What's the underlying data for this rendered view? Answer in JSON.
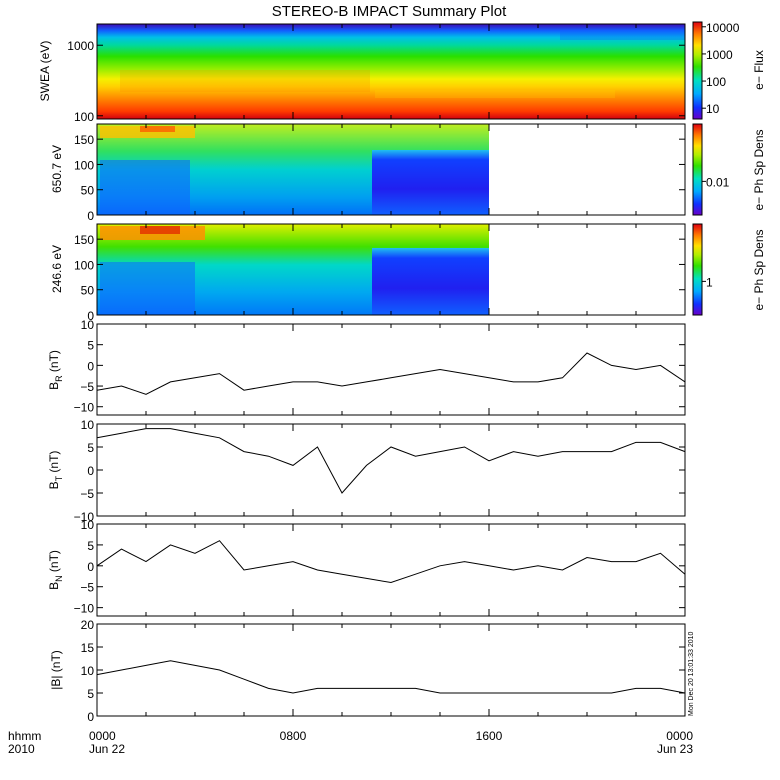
{
  "title": "STEREO-B IMPACT Summary Plot",
  "stamp": "Mon Dec 20 13:01:33 2010",
  "time_axis": {
    "left_label_1": "hhmm",
    "left_label_2": "2010",
    "ticks": [
      {
        "hours": 0,
        "label": "0000",
        "sublabel": "Jun 22"
      },
      {
        "hours": 8,
        "label": "0800",
        "sublabel": ""
      },
      {
        "hours": 16,
        "label": "1600",
        "sublabel": ""
      },
      {
        "hours": 24,
        "label": "0000",
        "sublabel": "Jun 23"
      }
    ],
    "range_hours": [
      0,
      24
    ]
  },
  "colors": {
    "trace": "#000000",
    "frame": "#000000"
  },
  "chart_data": [
    {
      "type": "heatmap",
      "ylabel": "SWEA (eV)",
      "yscale": "log",
      "ylim": [
        90,
        2000
      ],
      "yticks": [
        {
          "value": 100,
          "label": "100"
        },
        {
          "value": 1000,
          "label": "1000"
        }
      ],
      "colorbar": {
        "label": "e− Flux",
        "scale": "log",
        "range": [
          4,
          15000
        ],
        "ticks": [
          {
            "value": 10,
            "label": "10"
          },
          {
            "value": 100,
            "label": "100"
          },
          {
            "value": 1000,
            "label": "1000"
          },
          {
            "value": 10000,
            "label": "10000"
          }
        ]
      },
      "data_end_hours": 24
    },
    {
      "type": "heatmap",
      "ylabel": "650.7 eV",
      "ylim": [
        0,
        180
      ],
      "yticks": [
        {
          "value": 0,
          "label": "0"
        },
        {
          "value": 50,
          "label": "50"
        },
        {
          "value": 100,
          "label": "100"
        },
        {
          "value": 150,
          "label": "150"
        }
      ],
      "colorbar": {
        "label": "e− Ph Sp Dens",
        "scale": "log",
        "range": [
          0.0035,
          0.06
        ],
        "ticks": [
          {
            "value": 0.01,
            "label": "0.01"
          }
        ]
      },
      "data_end_hours": 16
    },
    {
      "type": "heatmap",
      "ylabel": "246.6 eV",
      "ylim": [
        0,
        180
      ],
      "yticks": [
        {
          "value": 0,
          "label": "0"
        },
        {
          "value": 50,
          "label": "50"
        },
        {
          "value": 100,
          "label": "100"
        },
        {
          "value": 150,
          "label": "150"
        }
      ],
      "colorbar": {
        "label": "e− Ph Sp Dens",
        "scale": "log",
        "range": [
          0.35,
          6
        ],
        "ticks": [
          {
            "value": 1,
            "label": "1"
          }
        ]
      },
      "data_end_hours": 16
    },
    {
      "type": "line",
      "ylabel": "B",
      "ylabel_sub": "R",
      "ylabel_unit": " (nT)",
      "ylim": [
        -12,
        10
      ],
      "yticks": [
        {
          "value": -10,
          "label": "−10"
        },
        {
          "value": -5,
          "label": "−5"
        },
        {
          "value": 0,
          "label": "0"
        },
        {
          "value": 5,
          "label": "5"
        },
        {
          "value": 10,
          "label": "10"
        }
      ],
      "x": [
        0,
        1,
        2,
        3,
        4,
        5,
        6,
        7,
        8,
        9,
        10,
        11,
        12,
        13,
        14,
        15,
        16,
        17,
        18,
        19,
        20,
        21,
        22,
        23,
        24
      ],
      "y": [
        -6,
        -5,
        -7,
        -4,
        -3,
        -2,
        -6,
        -5,
        -4,
        -4,
        -5,
        -4,
        -3,
        -2,
        -1,
        -2,
        -3,
        -4,
        -4,
        -3,
        3,
        0,
        -1,
        0,
        -4
      ]
    },
    {
      "type": "line",
      "ylabel": "B",
      "ylabel_sub": "T",
      "ylabel_unit": " (nT)",
      "ylim": [
        -10,
        10
      ],
      "yticks": [
        {
          "value": -10,
          "label": "−10"
        },
        {
          "value": -5,
          "label": "−5"
        },
        {
          "value": 0,
          "label": "0"
        },
        {
          "value": 5,
          "label": "5"
        },
        {
          "value": 10,
          "label": "10"
        }
      ],
      "x": [
        0,
        1,
        2,
        3,
        4,
        5,
        6,
        7,
        8,
        9,
        10,
        11,
        12,
        13,
        14,
        15,
        16,
        17,
        18,
        19,
        20,
        21,
        22,
        23,
        24
      ],
      "y": [
        7,
        8,
        9,
        9,
        8,
        7,
        4,
        3,
        1,
        5,
        -5,
        1,
        5,
        3,
        4,
        5,
        2,
        4,
        3,
        4,
        4,
        4,
        6,
        6,
        4
      ]
    },
    {
      "type": "line",
      "ylabel": "B",
      "ylabel_sub": "N",
      "ylabel_unit": " (nT)",
      "ylim": [
        -12,
        10
      ],
      "yticks": [
        {
          "value": -10,
          "label": "−10"
        },
        {
          "value": -5,
          "label": "−5"
        },
        {
          "value": 0,
          "label": "0"
        },
        {
          "value": 5,
          "label": "5"
        },
        {
          "value": 10,
          "label": "10"
        }
      ],
      "x": [
        0,
        1,
        2,
        3,
        4,
        5,
        6,
        7,
        8,
        9,
        10,
        11,
        12,
        13,
        14,
        15,
        16,
        17,
        18,
        19,
        20,
        21,
        22,
        23,
        24
      ],
      "y": [
        0,
        4,
        1,
        5,
        3,
        6,
        -1,
        0,
        1,
        -1,
        -2,
        -3,
        -4,
        -2,
        0,
        1,
        0,
        -1,
        0,
        -1,
        2,
        1,
        1,
        3,
        -2
      ]
    },
    {
      "type": "line",
      "ylabel": "|B| (nT)",
      "ylim": [
        0,
        20
      ],
      "yticks": [
        {
          "value": 0,
          "label": "0"
        },
        {
          "value": 5,
          "label": "5"
        },
        {
          "value": 10,
          "label": "10"
        },
        {
          "value": 15,
          "label": "15"
        },
        {
          "value": 20,
          "label": "20"
        }
      ],
      "x": [
        0,
        1,
        2,
        3,
        4,
        5,
        6,
        7,
        8,
        9,
        10,
        11,
        12,
        13,
        14,
        15,
        16,
        17,
        18,
        19,
        20,
        21,
        22,
        23,
        24
      ],
      "y": [
        9,
        10,
        11,
        12,
        11,
        10,
        8,
        6,
        5,
        6,
        6,
        6,
        6,
        6,
        5,
        5,
        5,
        5,
        5,
        5,
        5,
        5,
        6,
        6,
        5
      ]
    }
  ]
}
